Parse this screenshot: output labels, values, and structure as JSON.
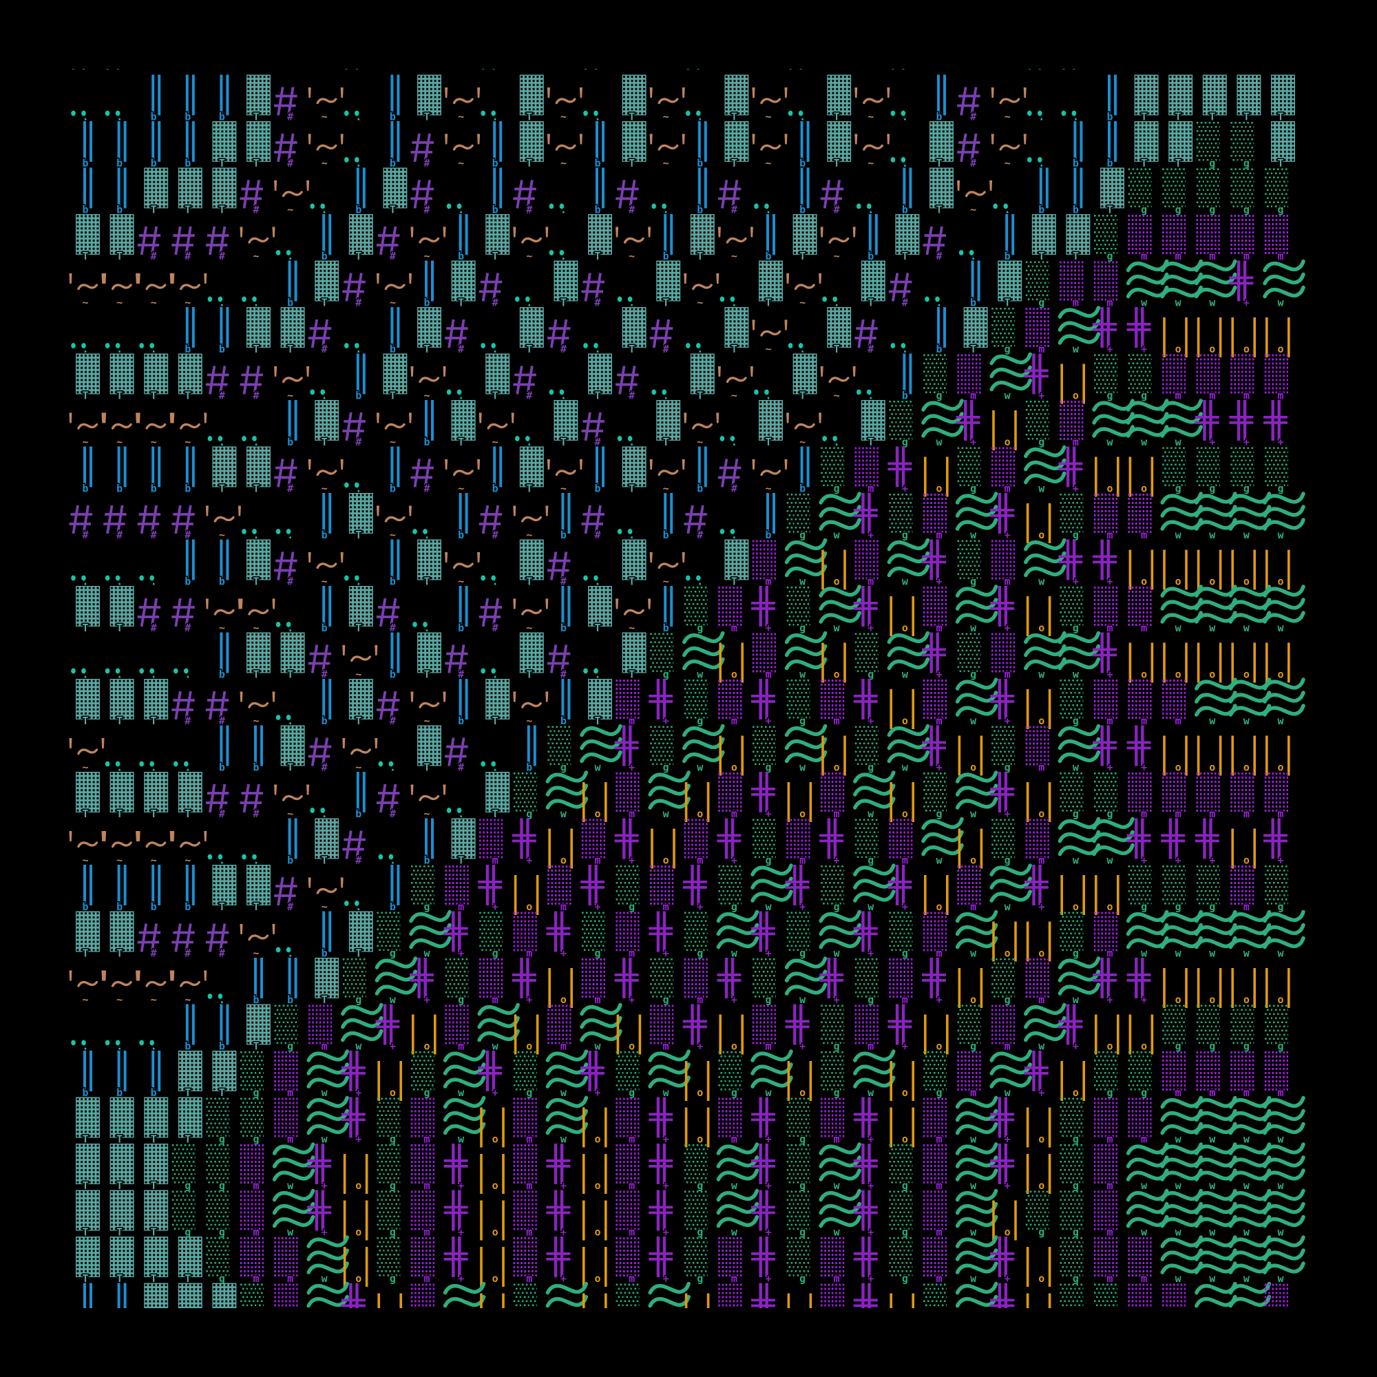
{
  "artwork": {
    "background": "#000000",
    "partial_top_row": "..      .   .  .  .  .  .   ..      ",
    "rows": [
      "..bbbT#~.bT~.T~.T~.T~.T~.b#~..bTTTTT",
      "bbbbTT#~.b#~bT~bT~bT~bT~.T#~.bbTTggT",
      "bbTTT#~.bT#.b#.b#.b#.b#.bT~.bbTggggg",
      "TT###~.bT#~bT~.T~bT~bT~bT#.bTTgmmmmm",
      "~~~~..bT#~bT#.T#.T~.T~.T#.bTgmmwww+w",
      "...bbTT#.bT#.T#.T#.T~.T#.bTgmw++oooo",
      "TTTT##~.bT~.T#.T#.T~.T~.bgmw+oggmmmm",
      "~~~~..bT#~bT~.T#.T~.T~.Tgw+ogmwww+++",
      "bbbbTT#~.b#~bT~bT~b#~bgm+ogmw+oogggg",
      "####~..bT~.b#~b#.b#.bgw+gmw+ogmmwwww",
      "...bbT#~.bT~.T#.T~.Tmwomw+gmw++ooooo",
      "TT##~~.bT#.b#~bT~bgm+gw+omw+ogmmwwww",
      "....bTT#~bT#.T#.Tgwomwogw+gmww+ooooo",
      "TTT##~.bT#~bT~bTm+gm+gm+omw+ogmmmwww",
      "~...bbT#~.T#.bgw+gwogwogw+ogmw++oooo",
      "TTTT##~.b#~.Tgwomwom+omwogw+oggmmmmm",
      "~~~~..bT#.bTm+om+om+gm+gmwogmww+++o+",
      "bbbbTT#~.bgm+om+gm+gw+gw+omw+oogggmg",
      "TT###~.bTgw+gm+gm+gw+gw+gmwoogmwwwww",
      "~~~~.bbTgw+gm+om+gm+gw+gm+ogmw++oooo",
      "...bbTgmw+omwomwom+om+gm+ogmw+oogggg",
      "bbbTTgmw+ogw+gw+gwogwogwogmw+oggmmmm",
      "TTTTggmw+gmwomwom+om+gm+omw+ogmmwwww",
      "TTTggmw+ogm+om+om+gw+gw+gmw+ogmwwwww",
      "TTTggmw+ogm+om+om+gw+gw+gmwoggmwwwww",
      "TTTTgmmwogm+om+om+gm+gm+gmw+ogmmwwww",
      "bbTTTgmw+omwogwogwom+om+ogw+oggmmwwm"
    ],
    "legend": {
      ".": {
        "glyph": "double-dot",
        "color": "#16c5aa"
      },
      "b": {
        "glyph": "double-vertical-bar",
        "color": "#1a8fd1"
      },
      "T": {
        "glyph": "dense-shade-block",
        "color": "#5ba8a2"
      },
      "#": {
        "glyph": "hash",
        "color": "#7b3fb1"
      },
      "~": {
        "glyph": "quoted-tilde",
        "color": "#c0845c"
      },
      "w": {
        "glyph": "triple-wave",
        "color": "#2fae7e"
      },
      "+": {
        "glyph": "double-cross",
        "color": "#8b23c2"
      },
      "o": {
        "glyph": "spaced-double-bar",
        "color": "#e09a08"
      },
      "g": {
        "glyph": "light-shade-dots",
        "color": "#28ad74"
      },
      "m": {
        "glyph": "medium-shade-dots",
        "color": "#a01fe3"
      }
    }
  }
}
